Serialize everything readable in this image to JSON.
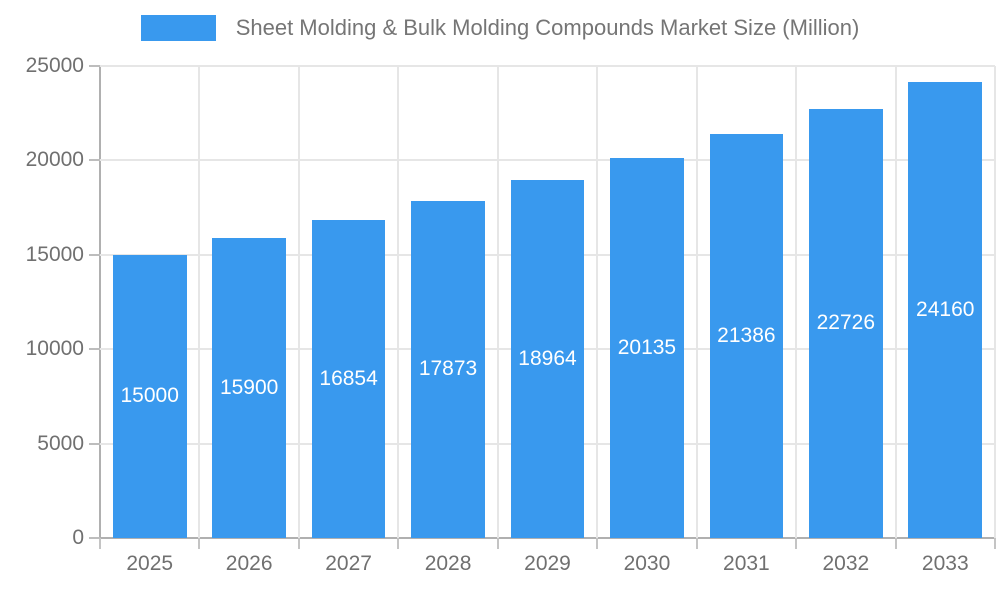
{
  "chart_data": {
    "type": "bar",
    "title": "Sheet Molding & Bulk Molding Compounds Market Size (Million)",
    "legend": {
      "position": "top",
      "entries": [
        "Sheet Molding & Bulk Molding Compounds Market Size (Million)"
      ]
    },
    "categories": [
      "2025",
      "2026",
      "2027",
      "2028",
      "2029",
      "2030",
      "2031",
      "2032",
      "2033"
    ],
    "values": [
      15000,
      15900,
      16854,
      17873,
      18964,
      20135,
      21386,
      22726,
      24160
    ],
    "xlabel": "",
    "ylabel": "",
    "ylim": [
      0,
      25000
    ],
    "yticks": [
      0,
      5000,
      10000,
      15000,
      20000,
      25000
    ],
    "grid": true,
    "colors": {
      "bar": "#3999EE",
      "bar_label": "#ffffff",
      "grid": "#e6e6e6",
      "axis": "#b0b0b0",
      "tick_text": "#707070",
      "legend_text": "#757575"
    }
  }
}
